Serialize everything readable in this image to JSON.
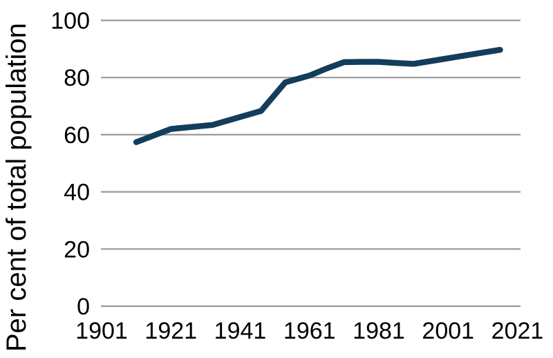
{
  "chart_data": {
    "type": "line",
    "title": "",
    "xlabel": "",
    "ylabel": "Per cent of total population",
    "legend": "none",
    "grid": "horizontal",
    "xlim": [
      1901,
      2021
    ],
    "ylim": [
      0,
      100
    ],
    "xticks": [
      1901,
      1921,
      1941,
      1961,
      1981,
      2001,
      2021
    ],
    "yticks": [
      0,
      20,
      40,
      60,
      80,
      100
    ],
    "series": [
      {
        "name": "Per cent of total population",
        "points": [
          {
            "x": 1911,
            "y": 57.4
          },
          {
            "x": 1921,
            "y": 62.0
          },
          {
            "x": 1933,
            "y": 63.4
          },
          {
            "x": 1947,
            "y": 68.3
          },
          {
            "x": 1954,
            "y": 78.3
          },
          {
            "x": 1961,
            "y": 80.7
          },
          {
            "x": 1966,
            "y": 83.2
          },
          {
            "x": 1971,
            "y": 85.4
          },
          {
            "x": 1976,
            "y": 85.5
          },
          {
            "x": 1981,
            "y": 85.5
          },
          {
            "x": 1986,
            "y": 85.1
          },
          {
            "x": 1991,
            "y": 84.8
          },
          {
            "x": 2016,
            "y": 89.7
          }
        ]
      }
    ],
    "colors": {
      "line": "#133d5b",
      "gridline": "#999999",
      "text": "#000000",
      "background": "#ffffff"
    }
  }
}
